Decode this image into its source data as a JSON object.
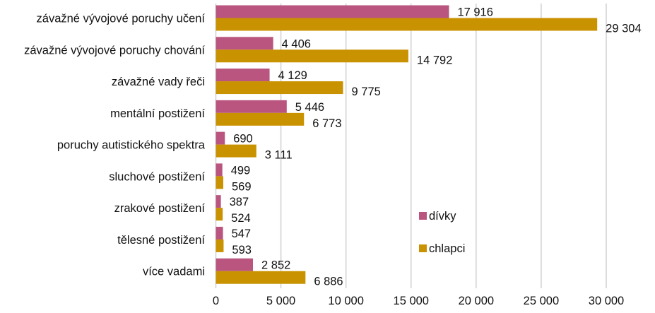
{
  "chart_data": {
    "type": "bar",
    "orientation": "horizontal",
    "categories": [
      "závažné vývojové poruchy učení",
      "závažné vývojové poruchy chování",
      "závažné vady řeči",
      "mentální postižení",
      "poruchy autistického spektra",
      "sluchové postižení",
      "zrakové postižení",
      "tělesné postižení",
      "více vadami"
    ],
    "series": [
      {
        "name": "dívky",
        "color": "#b9557f",
        "values": [
          17916,
          4406,
          4129,
          5446,
          690,
          499,
          387,
          547,
          2852
        ],
        "labels": [
          "17 916",
          "4 406",
          "4 129",
          "5 446",
          "690",
          "499",
          "387",
          "547",
          "2 852"
        ]
      },
      {
        "name": "chlapci",
        "color": "#c99200",
        "values": [
          29304,
          14792,
          9775,
          6773,
          3111,
          569,
          524,
          593,
          6886
        ],
        "labels": [
          "29 304",
          "14 792",
          "9 775",
          "6 773",
          "3 111",
          "569",
          "524",
          "593",
          "6 886"
        ]
      }
    ],
    "xlim": [
      0,
      30000
    ],
    "xticks": [
      0,
      5000,
      10000,
      15000,
      20000,
      25000,
      30000
    ],
    "xtick_labels": [
      "0",
      "5 000",
      "10 000",
      "15 000",
      "20 000",
      "25 000",
      "30 000"
    ],
    "grid": true,
    "legend_position": "lower-right inside plot"
  }
}
